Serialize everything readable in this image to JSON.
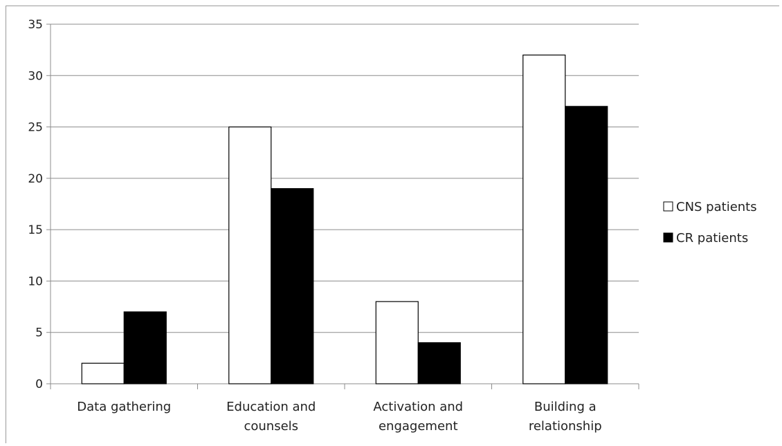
{
  "chart_data": {
    "type": "bar",
    "title": "",
    "xlabel": "",
    "ylabel": "",
    "categories": [
      [
        "Data gathering"
      ],
      [
        "Education and",
        "counsels"
      ],
      [
        "Activation and",
        "engagement"
      ],
      [
        "Building a",
        "relationship"
      ]
    ],
    "series": [
      {
        "name": "CNS patients",
        "values": [
          2,
          25,
          8,
          32
        ],
        "color": "#ffffff"
      },
      {
        "name": "CR patients",
        "values": [
          7,
          19,
          4,
          27
        ],
        "color": "#000000"
      }
    ],
    "ylim": [
      0,
      35
    ],
    "yticks": [
      0,
      5,
      10,
      15,
      20,
      25,
      30,
      35
    ],
    "grid": true,
    "legend": "right"
  }
}
